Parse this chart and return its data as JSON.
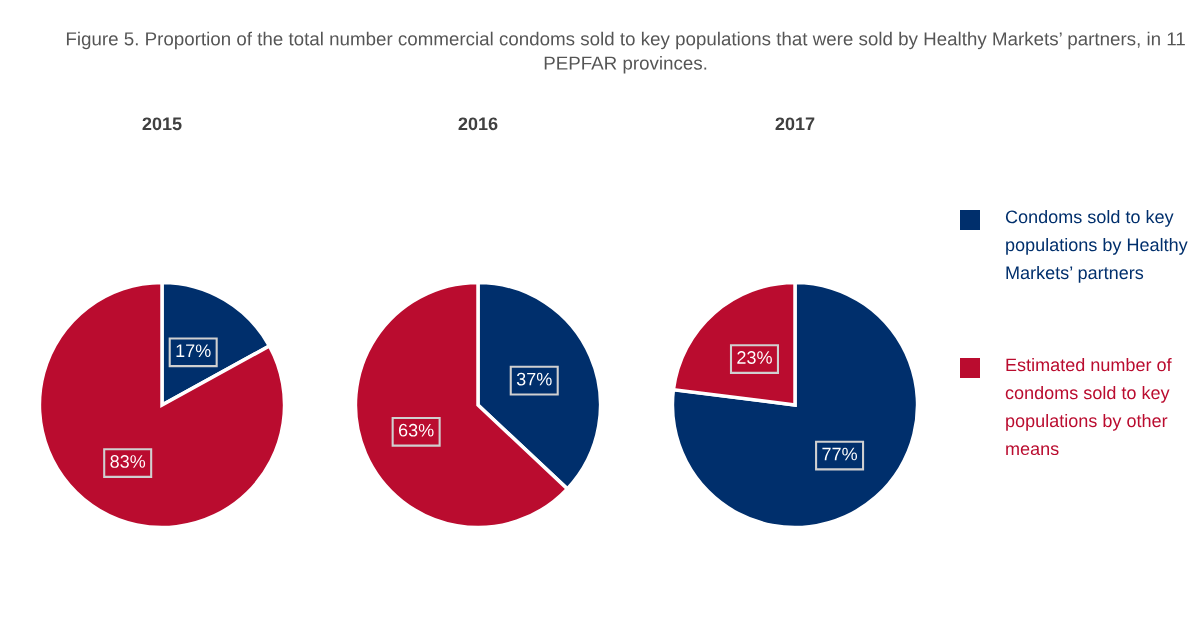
{
  "chart_data": [
    {
      "type": "pie",
      "title": "2015",
      "annotations": [
        "Figure 5. Proportion of the total number commercial condoms sold to key populations that were sold by Healthy Markets’ partners, in 11 PEPFAR provinces."
      ],
      "categories": [
        "Condoms sold to key populations by Healthy Markets’ partners",
        "Estimated number of condoms sold to key populations by other means"
      ],
      "values": [
        17,
        83
      ],
      "value_labels": [
        "17%",
        "83%"
      ],
      "colors": [
        "#002f6c",
        "#ba0c2f"
      ],
      "legend": "right"
    },
    {
      "type": "pie",
      "title": "2016",
      "values": [
        37,
        63
      ],
      "value_labels": [
        "37%",
        "63%"
      ],
      "colors": [
        "#002f6c",
        "#ba0c2f"
      ]
    },
    {
      "type": "pie",
      "title": "2017",
      "values": [
        77,
        23
      ],
      "value_labels": [
        "77%",
        "23%"
      ],
      "colors": [
        "#002f6c",
        "#ba0c2f"
      ]
    }
  ]
}
